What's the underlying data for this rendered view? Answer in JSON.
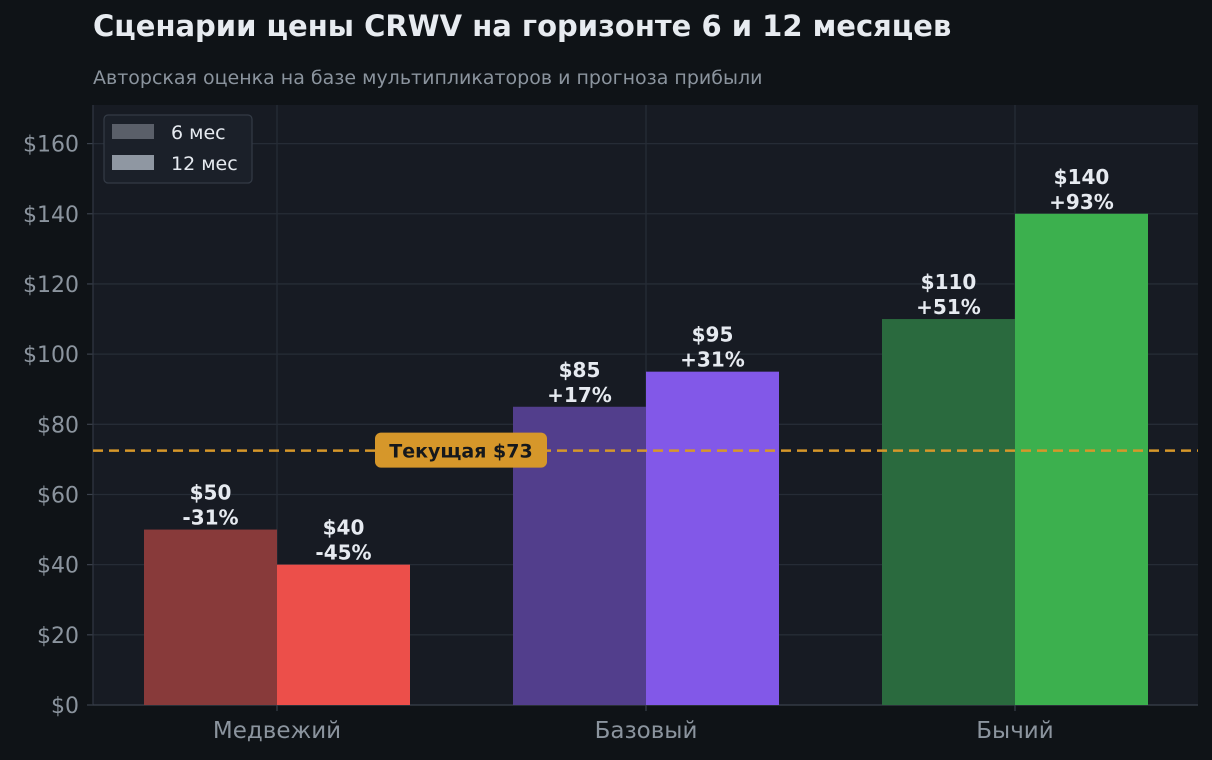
{
  "chart_data": {
    "type": "bar",
    "title": "Сценарии цены CRWV на горизонте 6 и 12 месяцев",
    "subtitle": "Авторская оценка на базе мультипликаторов и прогноза прибыли",
    "categories": [
      "Медвежий",
      "Базовый",
      "Бычий"
    ],
    "series": [
      {
        "name": "6 мес",
        "values": [
          50,
          85,
          110
        ],
        "value_labels": [
          "$50",
          "$85",
          "$110"
        ],
        "change_labels": [
          "-31%",
          "+17%",
          "+51%"
        ],
        "colors": [
          "#883a3a",
          "#523e8c",
          "#2a6a3e"
        ]
      },
      {
        "name": "12 мес",
        "values": [
          40,
          95,
          140
        ],
        "value_labels": [
          "$40",
          "$95",
          "$140"
        ],
        "change_labels": [
          "-45%",
          "+31%",
          "+93%"
        ],
        "colors": [
          "#ec4f4a",
          "#8258e8",
          "#3cb04e"
        ]
      }
    ],
    "y_ticks": [
      0,
      20,
      40,
      60,
      80,
      100,
      120,
      140,
      160
    ],
    "y_tick_labels": [
      "$0",
      "$20",
      "$40",
      "$60",
      "$80",
      "$100",
      "$120",
      "$140",
      "$160"
    ],
    "ylim": [
      0,
      171
    ],
    "reference_line": {
      "value": 72.5,
      "label": "Текущая $73",
      "color": "#d6972a"
    },
    "legend": {
      "position": "top-left",
      "entries": [
        {
          "label": "6 мес",
          "color": "#5a5f69"
        },
        {
          "label": "12 мес",
          "color": "#8f97a2"
        }
      ]
    },
    "grid": true,
    "xlabel": "",
    "ylabel": ""
  }
}
